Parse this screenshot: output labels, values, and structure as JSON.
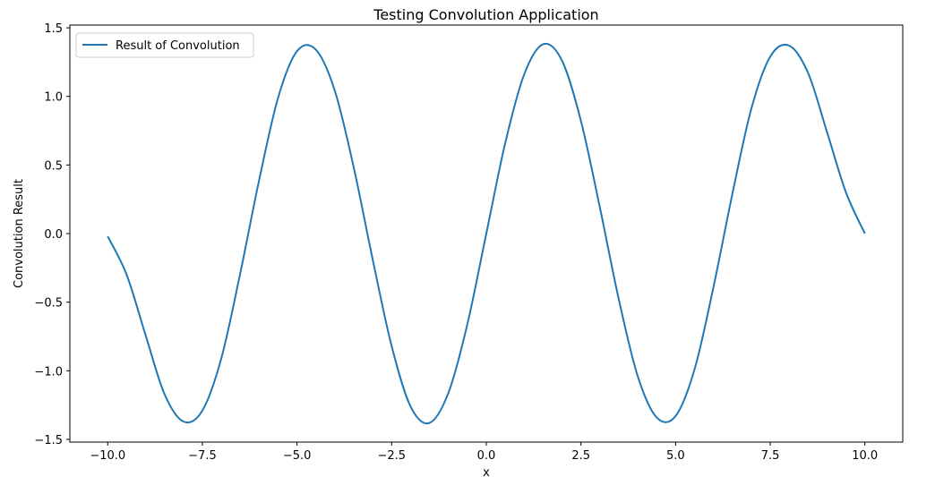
{
  "chart_data": {
    "type": "line",
    "title": "Testing Convolution Application",
    "xlabel": "x",
    "ylabel": "Convolution Result",
    "xlim": [
      -11.0,
      11.0
    ],
    "ylim": [
      -1.52,
      1.52
    ],
    "grid": false,
    "legend_position": "top-left",
    "x_ticks": [
      -10.0,
      -7.5,
      -5.0,
      -2.5,
      0.0,
      2.5,
      5.0,
      7.5,
      10.0
    ],
    "x_tick_labels": [
      "−10.0",
      "−7.5",
      "−5.0",
      "−2.5",
      "0.0",
      "2.5",
      "5.0",
      "7.5",
      "10.0"
    ],
    "y_ticks": [
      -1.5,
      -1.0,
      -0.5,
      0.0,
      0.5,
      1.0,
      1.5
    ],
    "y_tick_labels": [
      "−1.5",
      "−1.0",
      "−0.5",
      "0.0",
      "0.5",
      "1.0",
      "1.5"
    ],
    "series": [
      {
        "name": "Result of Convolution",
        "color": "#1f77b4",
        "x": [
          -10.0,
          -9.5,
          -9.0,
          -8.5,
          -8.0,
          -7.5,
          -7.0,
          -6.5,
          -6.0,
          -5.5,
          -5.0,
          -4.5,
          -4.0,
          -3.5,
          -3.0,
          -2.5,
          -2.0,
          -1.5,
          -1.0,
          -0.5,
          0.0,
          0.5,
          1.0,
          1.5,
          2.0,
          2.5,
          3.0,
          3.5,
          4.0,
          4.5,
          5.0,
          5.5,
          6.0,
          6.5,
          7.0,
          7.5,
          8.0,
          8.5,
          9.0,
          9.5,
          10.0
        ],
        "y": [
          -0.02,
          -0.3,
          -0.74,
          -1.17,
          -1.37,
          -1.29,
          -0.91,
          -0.29,
          0.39,
          0.99,
          1.33,
          1.34,
          1.04,
          0.48,
          -0.19,
          -0.82,
          -1.26,
          -1.38,
          -1.16,
          -0.66,
          0.0,
          0.66,
          1.16,
          1.38,
          1.26,
          0.82,
          0.19,
          -0.48,
          -1.04,
          -1.34,
          -1.33,
          -0.99,
          -0.39,
          0.29,
          0.91,
          1.29,
          1.37,
          1.17,
          0.74,
          0.3,
          0.0
        ]
      }
    ]
  }
}
